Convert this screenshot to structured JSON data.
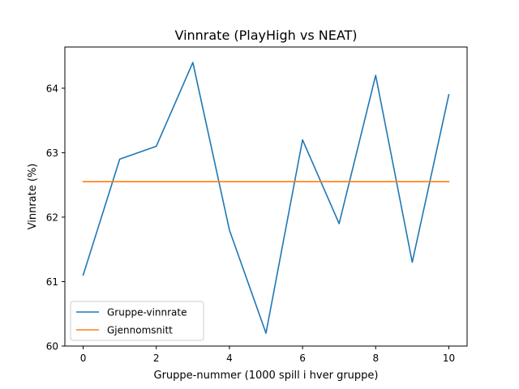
{
  "chart_data": {
    "type": "line",
    "title": "Vinnrate (PlayHigh vs NEAT)",
    "xlabel": "Gruppe-nummer (1000 spill i hver gruppe)",
    "ylabel": "Vinnrate (%)",
    "xlim": [
      -0.5,
      10.5
    ],
    "ylim": [
      60.0,
      64.64
    ],
    "xticks": [
      0,
      2,
      4,
      6,
      8,
      10
    ],
    "xtick_labels": [
      "0",
      "2",
      "4",
      "6",
      "8",
      "10"
    ],
    "yticks": [
      60,
      61,
      62,
      63,
      64
    ],
    "ytick_labels": [
      "60",
      "61",
      "62",
      "63",
      "64"
    ],
    "grid": false,
    "legend_position": "lower-left",
    "x": [
      0,
      1,
      2,
      3,
      4,
      5,
      6,
      7,
      8,
      9,
      10
    ],
    "series": [
      {
        "name": "Gruppe-vinnrate",
        "color": "#1f77b4",
        "values": [
          61.1,
          62.9,
          63.1,
          64.4,
          61.8,
          60.2,
          63.2,
          61.9,
          64.2,
          61.3,
          63.9
        ]
      },
      {
        "name": "Gjennomsnitt",
        "color": "#ff7f0e",
        "values": [
          62.55,
          62.55,
          62.55,
          62.55,
          62.55,
          62.55,
          62.55,
          62.55,
          62.55,
          62.55,
          62.55
        ]
      }
    ]
  }
}
